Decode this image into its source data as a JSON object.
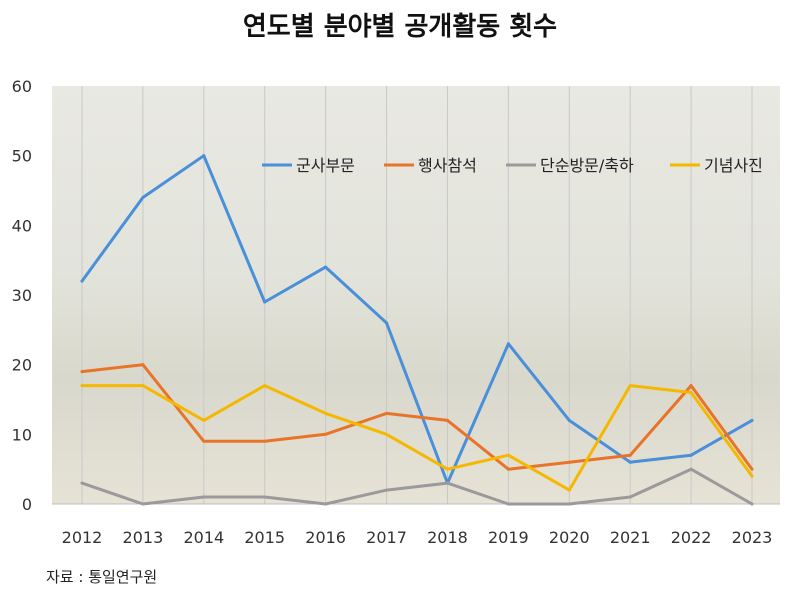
{
  "page_title": "연도별 분야별 공개활동 횟수",
  "source_note": "자료 : 통일연구원",
  "chart_data": {
    "type": "line",
    "title": "연도별 분야별 공개활동 횟수",
    "x": [
      "2012",
      "2013",
      "2014",
      "2015",
      "2016",
      "2017",
      "2018",
      "2019",
      "2020",
      "2021",
      "2022",
      "2023"
    ],
    "ylim": [
      0,
      60
    ],
    "yticks": [
      0,
      10,
      20,
      30,
      40,
      50,
      60
    ],
    "grid": "vertical",
    "legend_position": "top-right",
    "series": [
      {
        "name": "군사부문",
        "color": "#4a8fd9",
        "values": [
          32,
          44,
          50,
          29,
          34,
          26,
          3,
          23,
          12,
          6,
          7,
          12
        ]
      },
      {
        "name": "행사참석",
        "color": "#e8742a",
        "values": [
          19,
          20,
          9,
          9,
          10,
          13,
          12,
          5,
          6,
          7,
          17,
          5
        ]
      },
      {
        "name": "단순방문/축하",
        "color": "#9a9a9a",
        "values": [
          3,
          0,
          1,
          1,
          0,
          2,
          3,
          0,
          0,
          1,
          5,
          0
        ]
      },
      {
        "name": "기념사진",
        "color": "#f5b800",
        "values": [
          17,
          17,
          12,
          17,
          13,
          10,
          5,
          7,
          2,
          17,
          16,
          4
        ]
      }
    ]
  }
}
